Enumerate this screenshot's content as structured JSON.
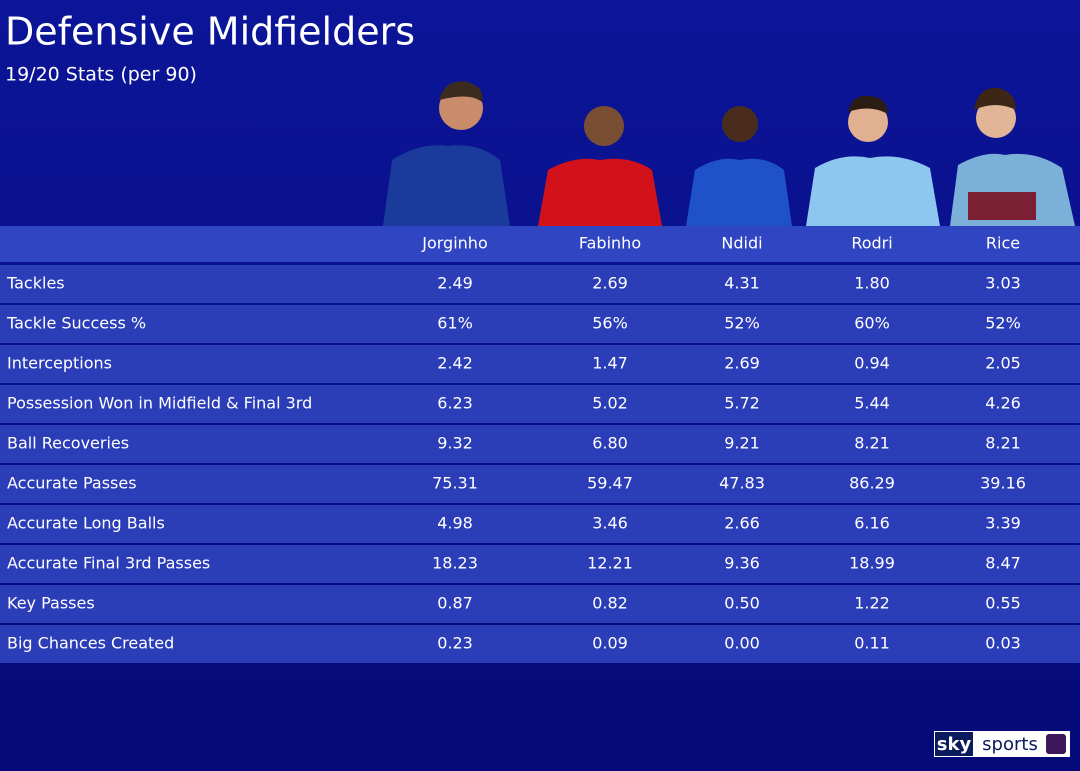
{
  "header": {
    "title": "Defensive Midfielders",
    "subtitle": "19/20 Stats (per 90)"
  },
  "table": {
    "columns": [
      "Jorginho",
      "Fabinho",
      "Ndidi",
      "Rodri",
      "Rice"
    ],
    "rows": [
      [
        "Tackles",
        "2.49",
        "2.69",
        "4.31",
        "1.80",
        "3.03"
      ],
      [
        "Tackle Success %",
        "61%",
        "56%",
        "52%",
        "60%",
        "52%"
      ],
      [
        "Interceptions",
        "2.42",
        "1.47",
        "2.69",
        "0.94",
        "2.05"
      ],
      [
        "Possession Won in Midfield & Final 3rd",
        "6.23",
        "5.02",
        "5.72",
        "5.44",
        "4.26"
      ],
      [
        "Ball Recoveries",
        "9.32",
        "6.80",
        "9.21",
        "8.21",
        "8.21"
      ],
      [
        "Accurate Passes",
        "75.31",
        "59.47",
        "47.83",
        "86.29",
        "39.16"
      ],
      [
        "Accurate Long Balls",
        "4.98",
        "3.46",
        "2.66",
        "6.16",
        "3.39"
      ],
      [
        "Accurate Final 3rd Passes",
        "18.23",
        "12.21",
        "9.36",
        "18.99",
        "8.47"
      ],
      [
        "Key Passes",
        "0.87",
        "0.82",
        "0.50",
        "1.22",
        "0.55"
      ],
      [
        "Big Chances Created",
        "0.23",
        "0.09",
        "0.00",
        "0.11",
        "0.03"
      ]
    ]
  },
  "logo": {
    "brand": "sky",
    "product": "sports"
  }
}
